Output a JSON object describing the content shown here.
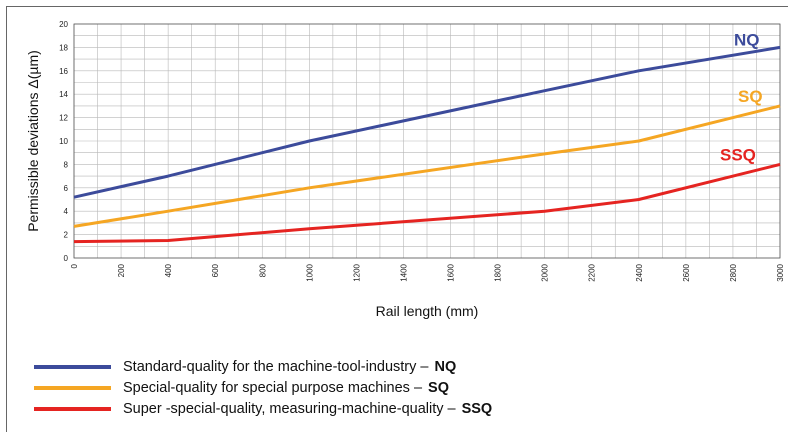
{
  "chart_data": {
    "type": "line",
    "xlabel": "Rail length (mm)",
    "ylabel": "Permissible deviations Δ(µm)",
    "xlim": [
      0,
      3000
    ],
    "ylim": [
      0,
      20
    ],
    "x_ticks": [
      0,
      200,
      400,
      600,
      800,
      1000,
      1200,
      1400,
      1600,
      1800,
      2000,
      2200,
      2400,
      2600,
      2800,
      3000
    ],
    "y_ticks": [
      0,
      2,
      4,
      6,
      8,
      10,
      12,
      14,
      16,
      18,
      20
    ],
    "x_minor_step": 100,
    "y_minor_step": 1,
    "grid": true,
    "legend_placement": "bottom",
    "series": [
      {
        "name": "NQ",
        "legend": "Standard-quality for the machine-tool-industry –",
        "color": "#3c4b9b",
        "x": [
          0,
          400,
          1000,
          2000,
          2400,
          3000
        ],
        "values": [
          5.2,
          7.0,
          10.0,
          14.3,
          16.0,
          18.0
        ]
      },
      {
        "name": "SQ",
        "legend": "Special-quality for special purpose machines –",
        "color": "#f5a623",
        "x": [
          0,
          400,
          1000,
          2000,
          2400,
          3000
        ],
        "values": [
          2.7,
          4.0,
          6.0,
          8.9,
          10.0,
          13.0
        ]
      },
      {
        "name": "SSQ",
        "legend": "Super -special-quality, measuring-machine-quality –",
        "color": "#e52421",
        "x": [
          0,
          400,
          1000,
          2000,
          2400,
          3000
        ],
        "values": [
          1.4,
          1.5,
          2.5,
          4.0,
          5.0,
          8.0
        ]
      }
    ]
  }
}
